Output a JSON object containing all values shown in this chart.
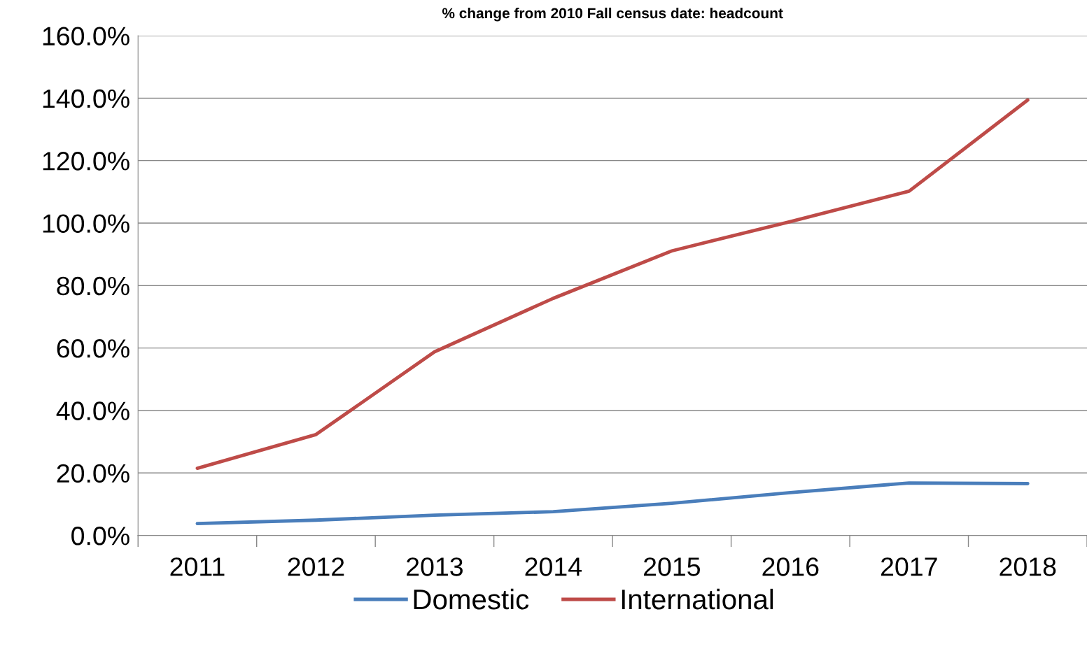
{
  "chart_data": {
    "type": "line",
    "title": "% change from 2010 Fall census date: headcount",
    "categories": [
      "2011",
      "2012",
      "2013",
      "2014",
      "2015",
      "2016",
      "2017",
      "2018"
    ],
    "series": [
      {
        "name": "Domestic",
        "color": "#4a7ebb",
        "values": [
          3.8,
          4.9,
          6.5,
          7.6,
          10.3,
          13.7,
          16.8,
          16.6
        ]
      },
      {
        "name": "International",
        "color": "#be4b48",
        "values": [
          21.5,
          32.3,
          58.8,
          75.9,
          91.1,
          100.5,
          110.2,
          139.4
        ]
      }
    ],
    "ylim": [
      0,
      160
    ],
    "yticks": [
      {
        "value": 0,
        "label": "0.0%"
      },
      {
        "value": 20,
        "label": "20.0%"
      },
      {
        "value": 40,
        "label": "40.0%"
      },
      {
        "value": 60,
        "label": "60.0%"
      },
      {
        "value": 80,
        "label": "80.0%"
      },
      {
        "value": 100,
        "label": "100.0%"
      },
      {
        "value": 120,
        "label": "120.0%"
      },
      {
        "value": 140,
        "label": "140.0%"
      },
      {
        "value": 160,
        "label": "160.0%"
      }
    ],
    "grid": "y",
    "legend": "bottom",
    "marker": "none",
    "line_style": "solid"
  }
}
